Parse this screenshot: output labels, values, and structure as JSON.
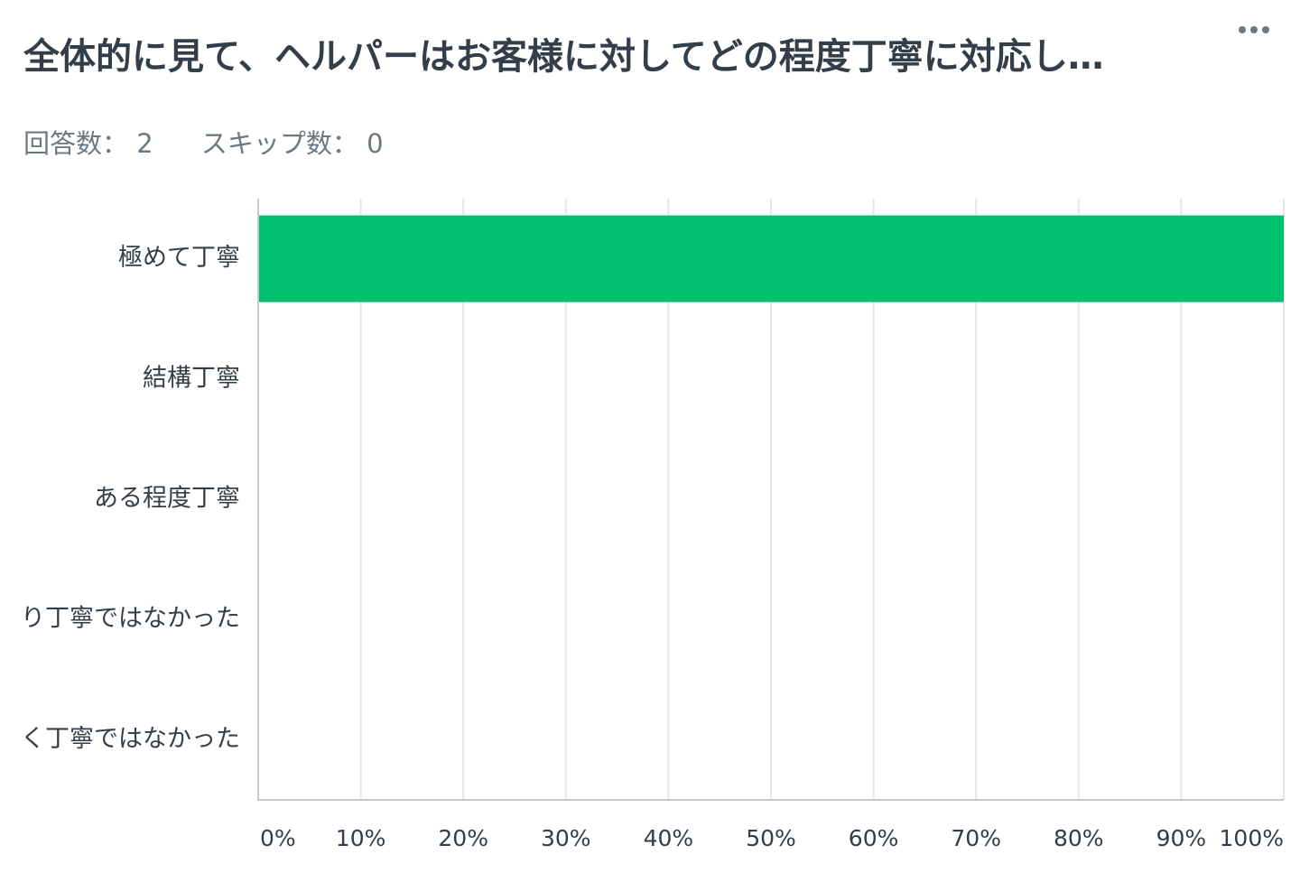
{
  "question": {
    "title": "全体的に見て、ヘルパーはお客様に対してどの程度丁寧に対応し…",
    "answered_label": "回答数： 2",
    "skipped_label": "スキップ数： 0"
  },
  "menu": {
    "icon": "more-horizontal-icon"
  },
  "colors": {
    "bar": "#00bf6f",
    "grid": "#e6e6e6",
    "axis": "#c8c8c8"
  },
  "chart_data": {
    "type": "bar",
    "orientation": "horizontal",
    "categories": [
      "極めて丁寧",
      "結構丁寧",
      "ある程度丁寧",
      "り丁寧ではなかった",
      "く丁寧ではなかった"
    ],
    "values": [
      100,
      0,
      0,
      0,
      0
    ],
    "xlim": [
      0,
      100
    ],
    "xticks": [
      "0%",
      "10%",
      "20%",
      "30%",
      "40%",
      "50%",
      "60%",
      "70%",
      "80%",
      "90%",
      "100%"
    ],
    "grid": true,
    "title": "",
    "xlabel": "",
    "ylabel": ""
  }
}
